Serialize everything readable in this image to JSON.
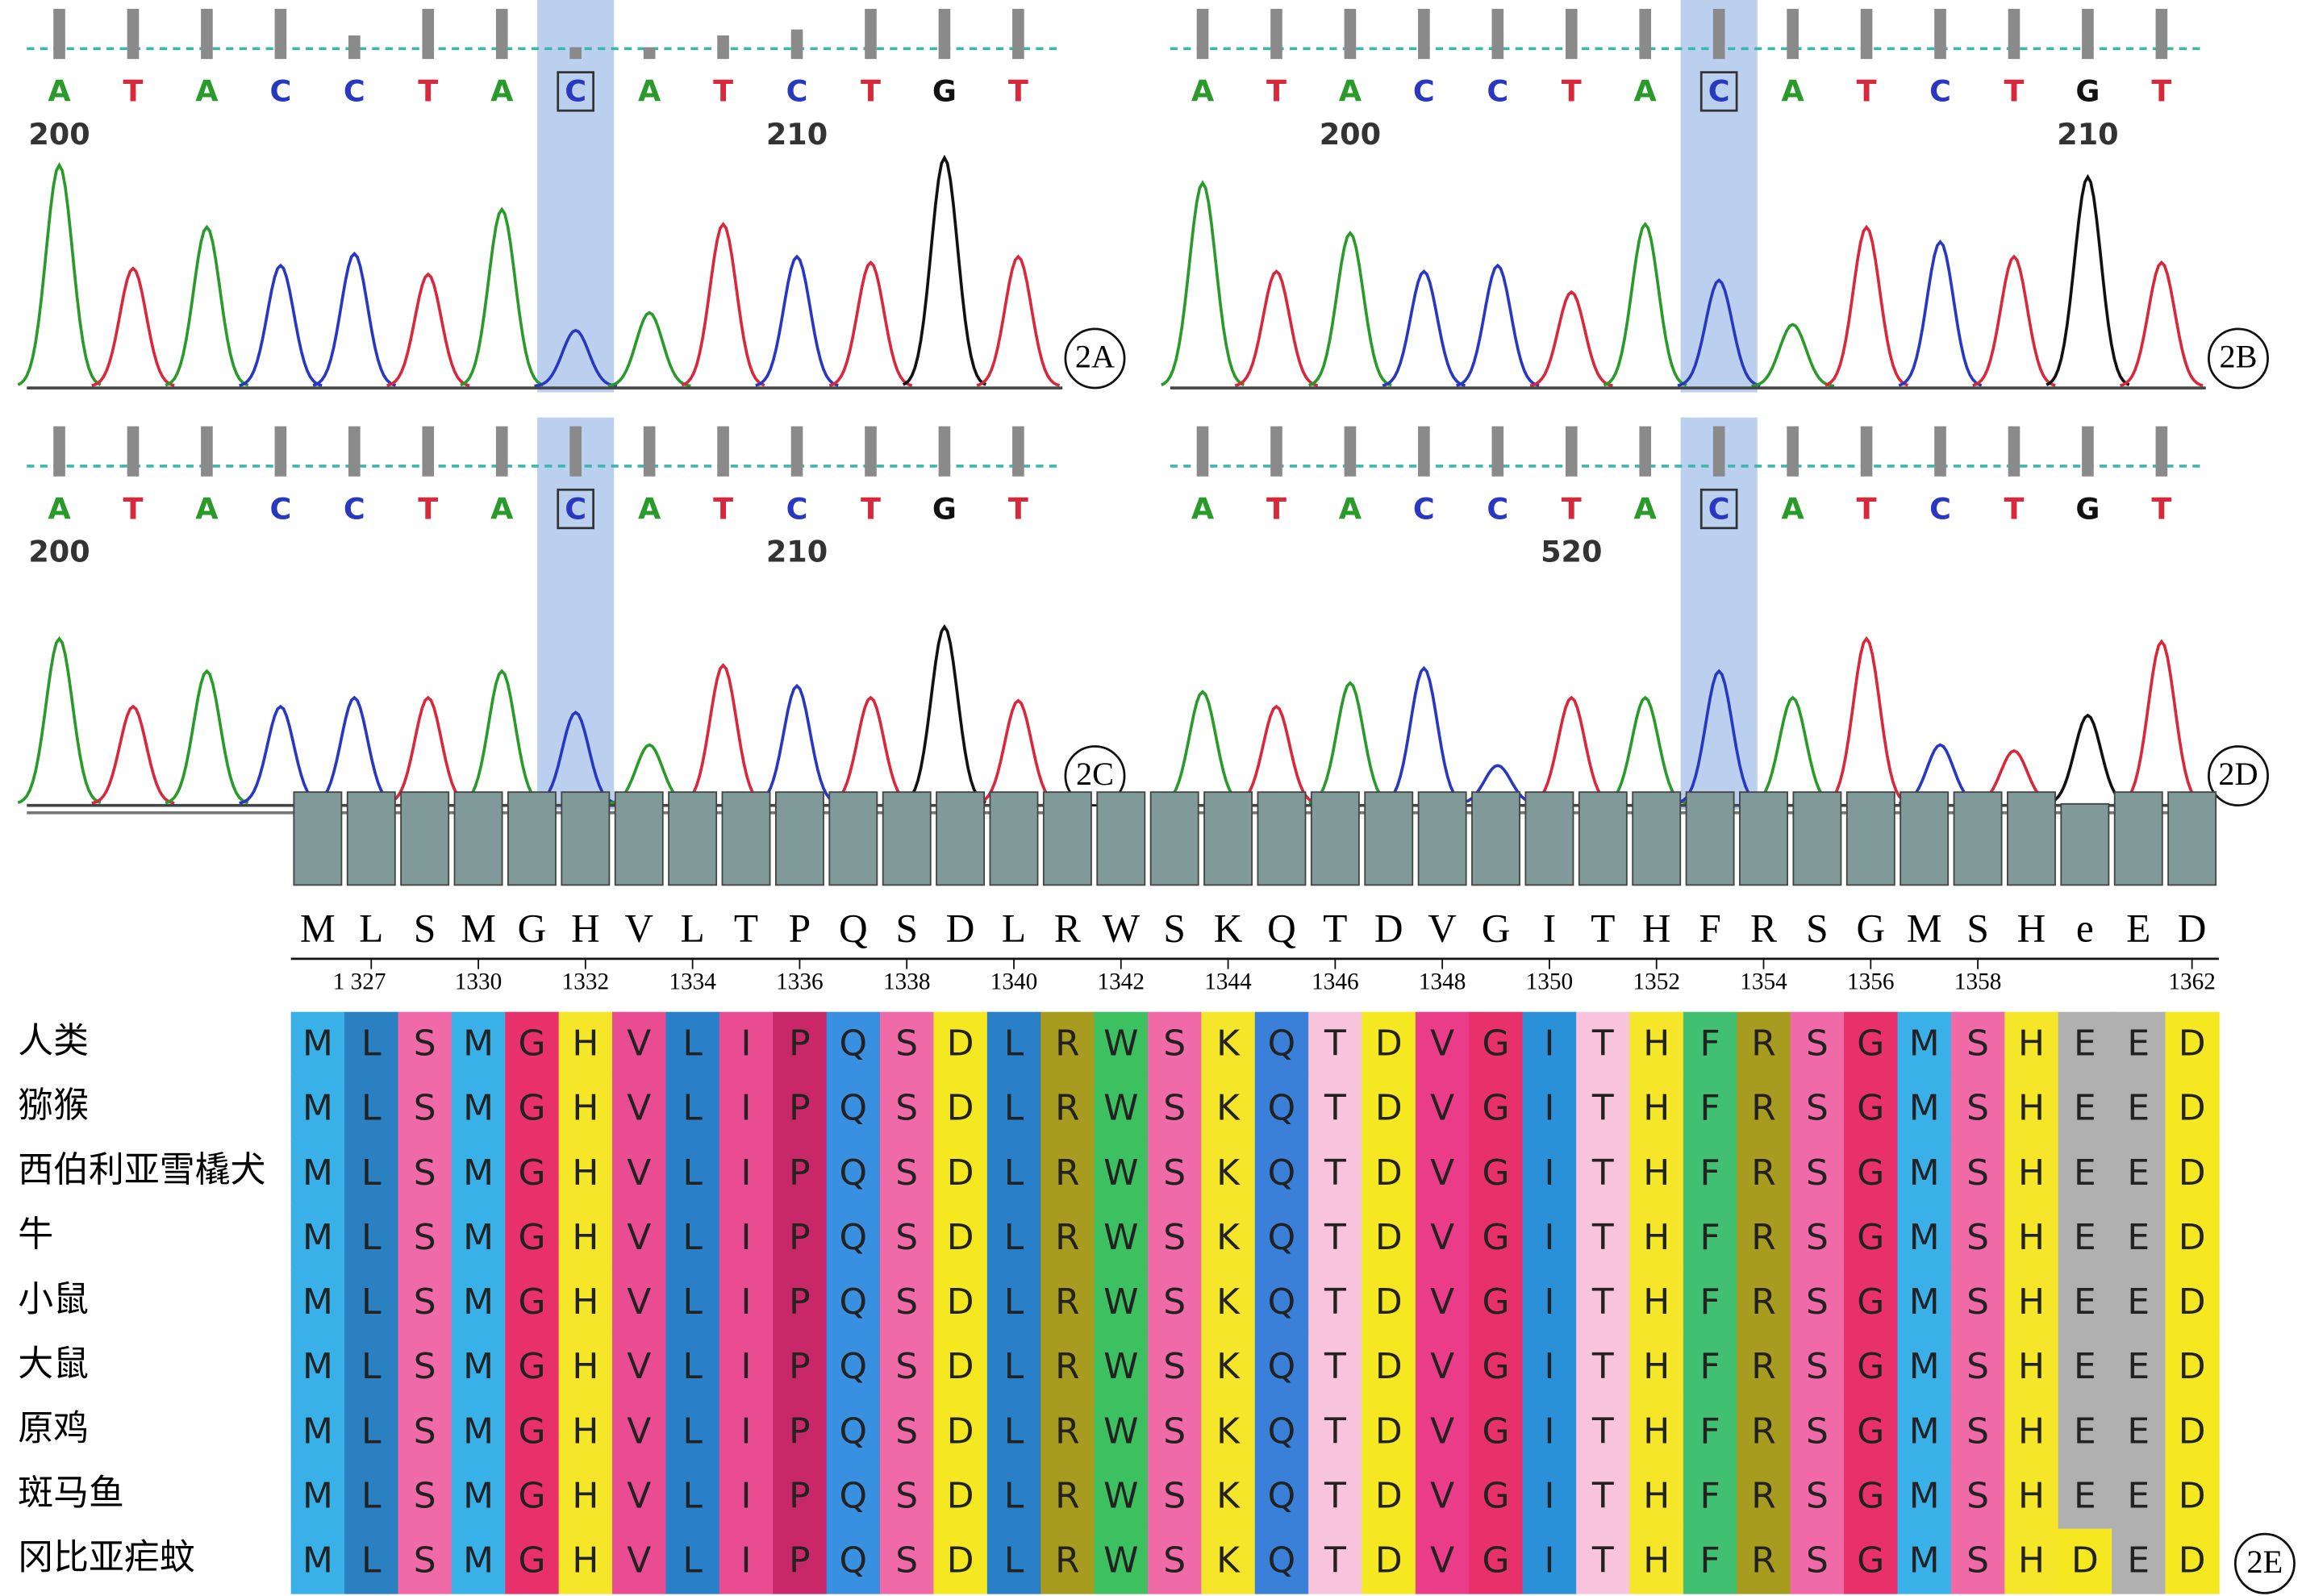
{
  "panels": [
    {
      "label": "2A",
      "bases": [
        "A",
        "T",
        "A",
        "C",
        "C",
        "T",
        "A",
        "C",
        "A",
        "T",
        "C",
        "T",
        "G",
        "T"
      ],
      "positions": [
        "200",
        null,
        null,
        null,
        null,
        null,
        null,
        null,
        null,
        null,
        "210",
        null,
        null,
        null
      ]
    },
    {
      "label": "2B",
      "bases": [
        "A",
        "T",
        "A",
        "C",
        "C",
        "T",
        "A",
        "C",
        "A",
        "T",
        "C",
        "T",
        "G",
        "T"
      ],
      "positions": [
        null,
        null,
        "200",
        null,
        null,
        null,
        null,
        null,
        null,
        null,
        null,
        null,
        "210",
        null
      ]
    },
    {
      "label": "2C",
      "bases": [
        "A",
        "T",
        "A",
        "C",
        "C",
        "T",
        "A",
        "C",
        "A",
        "T",
        "C",
        "T",
        "G",
        "T"
      ],
      "positions": [
        "200",
        null,
        null,
        null,
        null,
        null,
        null,
        null,
        null,
        null,
        "210",
        null,
        null,
        null
      ]
    },
    {
      "label": "2D",
      "bases": [
        "A",
        "T",
        "A",
        "C",
        "C",
        "T",
        "A",
        "C",
        "A",
        "T",
        "C",
        "T",
        "G",
        "T"
      ],
      "positions": [
        null,
        null,
        null,
        null,
        null,
        "520",
        null,
        null,
        null,
        null,
        null,
        null,
        null,
        null
      ]
    }
  ],
  "alignment": {
    "label": "2E",
    "consensus": [
      "M",
      "L",
      "S",
      "M",
      "G",
      "H",
      "V",
      "L",
      "T",
      "P",
      "Q",
      "S",
      "D",
      "L",
      "R",
      "W",
      "S",
      "K",
      "Q",
      "T",
      "D",
      "V",
      "G",
      "I",
      "T",
      "H",
      "F",
      "R",
      "S",
      "G",
      "M",
      "S",
      "H",
      "e",
      "E",
      "D"
    ],
    "positions": [
      null,
      "1 327",
      null,
      "1330",
      null,
      "1332",
      null,
      "1334",
      null,
      "1336",
      null,
      "1338",
      null,
      "1340",
      null,
      "1342",
      null,
      "1344",
      null,
      "1346",
      null,
      "1348",
      null,
      "1350",
      null,
      "1352",
      null,
      "1354",
      null,
      "1356",
      null,
      "1358",
      null,
      null,
      null,
      "1362"
    ],
    "rows": [
      {
        "species": "人类",
        "residues": [
          "M",
          "L",
          "S",
          "M",
          "G",
          "H",
          "V",
          "L",
          "I",
          "P",
          "Q",
          "S",
          "D",
          "L",
          "R",
          "W",
          "S",
          "K",
          "Q",
          "T",
          "D",
          "V",
          "G",
          "I",
          "T",
          "H",
          "F",
          "R",
          "S",
          "G",
          "M",
          "S",
          "H",
          "E",
          "E",
          "D"
        ]
      },
      {
        "species": "猕猴",
        "residues": [
          "M",
          "L",
          "S",
          "M",
          "G",
          "H",
          "V",
          "L",
          "I",
          "P",
          "Q",
          "S",
          "D",
          "L",
          "R",
          "W",
          "S",
          "K",
          "Q",
          "T",
          "D",
          "V",
          "G",
          "I",
          "T",
          "H",
          "F",
          "R",
          "S",
          "G",
          "M",
          "S",
          "H",
          "E",
          "E",
          "D"
        ]
      },
      {
        "species": "西伯利亚雪橇犬",
        "residues": [
          "M",
          "L",
          "S",
          "M",
          "G",
          "H",
          "V",
          "L",
          "I",
          "P",
          "Q",
          "S",
          "D",
          "L",
          "R",
          "W",
          "S",
          "K",
          "Q",
          "T",
          "D",
          "V",
          "G",
          "I",
          "T",
          "H",
          "F",
          "R",
          "S",
          "G",
          "M",
          "S",
          "H",
          "E",
          "E",
          "D"
        ]
      },
      {
        "species": "牛",
        "residues": [
          "M",
          "L",
          "S",
          "M",
          "G",
          "H",
          "V",
          "L",
          "I",
          "P",
          "Q",
          "S",
          "D",
          "L",
          "R",
          "W",
          "S",
          "K",
          "Q",
          "T",
          "D",
          "V",
          "G",
          "I",
          "T",
          "H",
          "F",
          "R",
          "S",
          "G",
          "M",
          "S",
          "H",
          "E",
          "E",
          "D"
        ]
      },
      {
        "species": "小鼠",
        "residues": [
          "M",
          "L",
          "S",
          "M",
          "G",
          "H",
          "V",
          "L",
          "I",
          "P",
          "Q",
          "S",
          "D",
          "L",
          "R",
          "W",
          "S",
          "K",
          "Q",
          "T",
          "D",
          "V",
          "G",
          "I",
          "T",
          "H",
          "F",
          "R",
          "S",
          "G",
          "M",
          "S",
          "H",
          "E",
          "E",
          "D"
        ]
      },
      {
        "species": "大鼠",
        "residues": [
          "M",
          "L",
          "S",
          "M",
          "G",
          "H",
          "V",
          "L",
          "I",
          "P",
          "Q",
          "S",
          "D",
          "L",
          "R",
          "W",
          "S",
          "K",
          "Q",
          "T",
          "D",
          "V",
          "G",
          "I",
          "T",
          "H",
          "F",
          "R",
          "S",
          "G",
          "M",
          "S",
          "H",
          "E",
          "E",
          "D"
        ]
      },
      {
        "species": "原鸡",
        "residues": [
          "M",
          "L",
          "S",
          "M",
          "G",
          "H",
          "V",
          "L",
          "I",
          "P",
          "Q",
          "S",
          "D",
          "L",
          "R",
          "W",
          "S",
          "K",
          "Q",
          "T",
          "D",
          "V",
          "G",
          "I",
          "T",
          "H",
          "F",
          "R",
          "S",
          "G",
          "M",
          "S",
          "H",
          "E",
          "E",
          "D"
        ]
      },
      {
        "species": "斑马鱼",
        "residues": [
          "M",
          "L",
          "S",
          "M",
          "G",
          "H",
          "V",
          "L",
          "I",
          "P",
          "Q",
          "S",
          "D",
          "L",
          "R",
          "W",
          "S",
          "K",
          "Q",
          "T",
          "D",
          "V",
          "G",
          "I",
          "T",
          "H",
          "F",
          "R",
          "S",
          "G",
          "M",
          "S",
          "H",
          "E",
          "E",
          "D"
        ]
      },
      {
        "species": "冈比亚疟蚊",
        "residues": [
          "M",
          "L",
          "S",
          "M",
          "G",
          "H",
          "V",
          "L",
          "I",
          "P",
          "Q",
          "S",
          "D",
          "L",
          "R",
          "W",
          "S",
          "K",
          "Q",
          "T",
          "D",
          "V",
          "G",
          "I",
          "T",
          "H",
          "F",
          "R",
          "S",
          "G",
          "M",
          "S",
          "H",
          "D",
          "E",
          "D"
        ]
      }
    ]
  }
}
